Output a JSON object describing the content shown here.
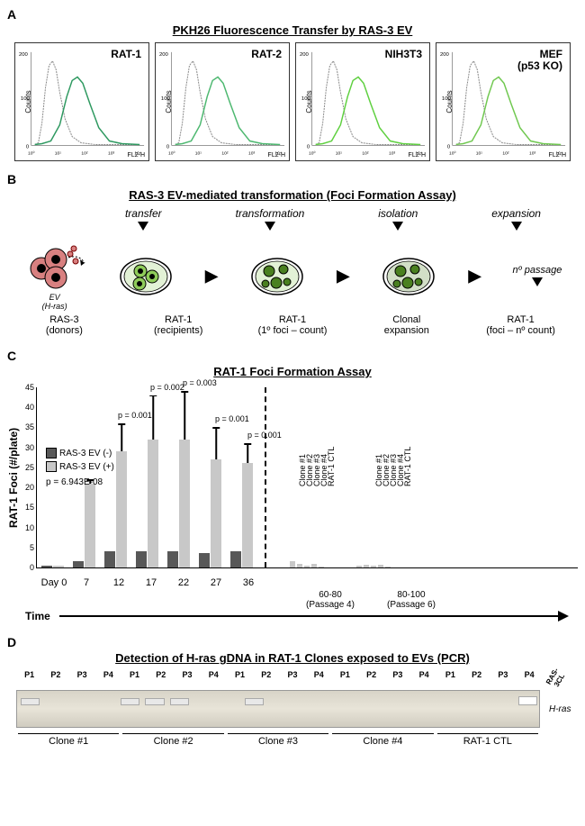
{
  "panelA": {
    "label": "A",
    "title": "PKH26 Fluorescence Transfer by RAS-3 EV",
    "plots": [
      {
        "name": "RAT-1",
        "curve_color": "#2e9960"
      },
      {
        "name": "RAT-2",
        "curve_color": "#4db870"
      },
      {
        "name": "NIH3T3",
        "curve_color": "#5fd040"
      },
      {
        "name": "MEF\n(p53 KO)",
        "curve_color": "#70c850"
      }
    ],
    "y_axis": "Counts",
    "x_axis": "FL2-H",
    "x_ticks": [
      "10⁰",
      "10¹",
      "10²",
      "10³",
      "10⁴"
    ],
    "y_max": 200
  },
  "panelB": {
    "label": "B",
    "title": "RAS-3 EV-mediated transformation (Foci Formation Assay)",
    "stages_top": [
      "transfer",
      "transformation",
      "isolation",
      "expansion"
    ],
    "donor_color": "#d88080",
    "recipient_color": "#8fcc5a",
    "dark_recipient_color": "#4a8020",
    "ev_label": "EV\n(H-ras)",
    "passage_label": "nº passage",
    "stages_bottom": [
      "RAS-3\n(donors)",
      "RAT-1\n(recipients)",
      "RAT-1\n(1º foci – count)",
      "Clonal\nexpansion",
      "RAT-1\n(foci – nº count)"
    ]
  },
  "panelC": {
    "label": "C",
    "title": "RAT-1 Foci Formation Assay",
    "y_label": "RAT-1 Foci (#/plate)",
    "y_max": 45,
    "legend": [
      {
        "label": "RAS-3 EV (-)",
        "color": "#585858"
      },
      {
        "label": "RAS-3 EV (+)",
        "color": "#c8c8c8"
      }
    ],
    "first_p": "p = 6.943E-08",
    "days": [
      "Day 0",
      "7",
      "12",
      "17",
      "22",
      "27",
      "36"
    ],
    "data": [
      {
        "neg": 0.5,
        "pos": 0.5,
        "p": ""
      },
      {
        "neg": 1.5,
        "pos": 21,
        "err": 1,
        "p": "p = 6.943E-08"
      },
      {
        "neg": 4,
        "pos": 29,
        "err": 7,
        "p": "p = 0.001"
      },
      {
        "neg": 4,
        "pos": 32,
        "err": 11,
        "p": "p = 0.002"
      },
      {
        "neg": 4,
        "pos": 32,
        "err": 12,
        "p": "p = 0.003"
      },
      {
        "neg": 3.5,
        "pos": 27,
        "err": 8,
        "p": "p = 0.001"
      },
      {
        "neg": 4,
        "pos": 26,
        "err": 5,
        "p": "p = 0.001"
      }
    ],
    "clone_labels": [
      "Clone #1",
      "Clone #2",
      "Clone #3",
      "Clone #4",
      "RAT-1 CTL"
    ],
    "passage_groups": [
      {
        "label": "60-80\n(Passage 4)",
        "vals": [
          1.5,
          1,
          0.5,
          1,
          0.3
        ]
      },
      {
        "label": "80-100\n(Passage 6)",
        "vals": [
          0.5,
          0.7,
          0.4,
          0.6,
          0.3
        ]
      }
    ],
    "time_label": "Time"
  },
  "panelD": {
    "label": "D",
    "title": "Detection of H-ras gDNA in RAT-1 Clones exposed to EVs (PCR)",
    "lanes": [
      "P1",
      "P2",
      "P3",
      "P4",
      "P1",
      "P2",
      "P3",
      "P4",
      "P1",
      "P2",
      "P3",
      "P4",
      "P1",
      "P2",
      "P3",
      "P4",
      "P1",
      "P2",
      "P3",
      "P4",
      "RAS-3CL"
    ],
    "clones": [
      "Clone #1",
      "Clone #2",
      "Clone #3",
      "Clone #4",
      "RAT-1 CTL"
    ],
    "band_label": "H-ras",
    "bands_present": [
      true,
      false,
      false,
      false,
      true,
      true,
      true,
      false,
      false,
      true,
      false,
      false,
      false,
      false,
      false,
      false,
      false,
      false,
      false,
      false,
      true
    ]
  }
}
